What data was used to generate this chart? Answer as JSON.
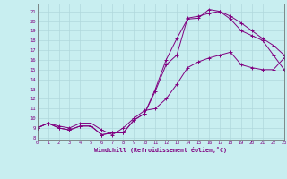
{
  "xlabel": "Windchill (Refroidissement éolien,°C)",
  "bg_color": "#c8eef0",
  "line_color": "#800080",
  "grid_color": "#b0d8dc",
  "curve1_x": [
    0,
    1,
    2,
    3,
    4,
    5,
    6,
    7,
    8,
    9,
    10,
    11,
    12,
    13,
    14,
    15,
    16,
    17,
    18,
    19,
    20,
    21,
    22,
    23
  ],
  "curve1_y": [
    9,
    9.5,
    9.0,
    8.8,
    9.2,
    9.2,
    8.3,
    8.5,
    8.5,
    9.8,
    10.5,
    13.0,
    16.0,
    18.2,
    20.2,
    20.3,
    21.2,
    21.0,
    20.2,
    19.0,
    18.5,
    18.0,
    16.5,
    15.0
  ],
  "curve2_x": [
    0,
    1,
    2,
    3,
    4,
    5,
    6,
    7,
    8,
    9,
    10,
    11,
    12,
    13,
    14,
    15,
    16,
    17,
    18,
    19,
    20,
    21,
    22,
    23
  ],
  "curve2_y": [
    9,
    9.5,
    9.0,
    8.8,
    9.2,
    9.2,
    8.3,
    8.5,
    8.5,
    9.8,
    10.5,
    12.8,
    15.5,
    16.5,
    20.3,
    20.5,
    20.8,
    21.0,
    20.5,
    19.8,
    19.0,
    18.2,
    17.5,
    16.5
  ],
  "curve3_x": [
    0,
    1,
    2,
    3,
    4,
    5,
    6,
    7,
    8,
    9,
    10,
    11,
    12,
    13,
    14,
    15,
    16,
    17,
    18,
    19,
    20,
    21,
    22,
    23
  ],
  "curve3_y": [
    9,
    9.5,
    9.2,
    9.0,
    9.5,
    9.5,
    8.8,
    8.3,
    9.0,
    10.0,
    10.8,
    11.0,
    12.0,
    13.5,
    15.2,
    15.8,
    16.2,
    16.5,
    16.8,
    15.5,
    15.2,
    15.0,
    15.0,
    16.2
  ],
  "xlim": [
    0,
    23
  ],
  "ylim": [
    7.8,
    21.8
  ],
  "yticks": [
    8,
    9,
    10,
    11,
    12,
    13,
    14,
    15,
    16,
    17,
    18,
    19,
    20,
    21
  ],
  "xticks": [
    0,
    1,
    2,
    3,
    4,
    5,
    6,
    7,
    8,
    9,
    10,
    11,
    12,
    13,
    14,
    15,
    16,
    17,
    18,
    19,
    20,
    21,
    22,
    23
  ]
}
